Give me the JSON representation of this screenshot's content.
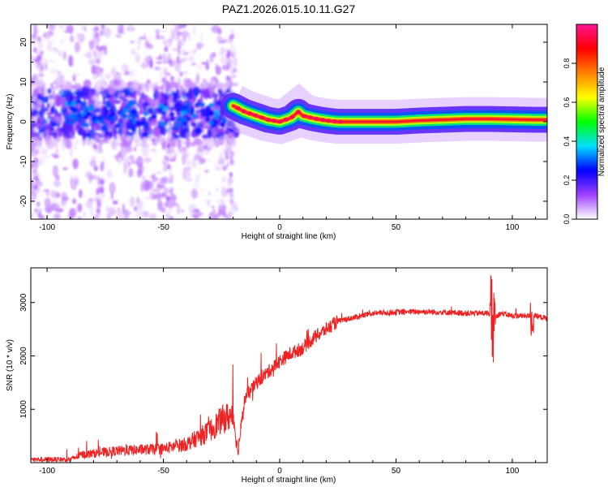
{
  "title": "PAZ1.2026.015.10.11.G27",
  "chart_data": [
    {
      "type": "heatmap",
      "id": "spectrogram",
      "xlabel": "Height of straight line (km)",
      "ylabel": "Frequency (Hz)",
      "xlim": [
        -107,
        115
      ],
      "ylim": [
        -24.5,
        24.5
      ],
      "xticks": [
        -100,
        -50,
        0,
        50,
        100
      ],
      "yticks": [
        -20,
        -10,
        0,
        10,
        20
      ],
      "ridge": {
        "x": [
          -20,
          -15,
          -10,
          -5,
          0,
          5,
          8,
          10,
          15,
          20,
          25,
          30,
          40,
          50,
          60,
          70,
          80,
          90,
          100,
          110,
          115
        ],
        "freq": [
          4,
          2.5,
          1.5,
          0.5,
          0,
          1,
          2.5,
          1.5,
          0.8,
          0.3,
          0,
          0,
          0,
          0,
          0.3,
          0.5,
          0.7,
          0.7,
          0.6,
          0.5,
          0.5
        ]
      },
      "colorbar": {
        "label": "Normalized spectral amplitude",
        "range": [
          0,
          1
        ],
        "ticks": [
          0.0,
          0.2,
          0.4,
          0.6,
          0.8
        ],
        "tick_labels": [
          "0.0",
          "0.2",
          "0.4",
          "0.6",
          "0.8"
        ],
        "colors": [
          "#ffffff",
          "#a040ff",
          "#0000ff",
          "#00e0ff",
          "#00ff00",
          "#ffff00",
          "#ff8000",
          "#ff0000",
          "#ff1493"
        ]
      }
    },
    {
      "type": "line",
      "id": "snr",
      "xlabel": "Height of straight line (km)",
      "ylabel": "SNR (10 * v/v)",
      "xlim": [
        -107,
        115
      ],
      "ylim": [
        0,
        3650
      ],
      "xticks": [
        -100,
        -50,
        0,
        50,
        100
      ],
      "yticks": [
        1000,
        2000,
        3000
      ],
      "color": "#ee2222",
      "envelope": {
        "x": [
          -107,
          -90,
          -85,
          -70,
          -50,
          -40,
          -30,
          -25,
          -20,
          -18,
          -15,
          -10,
          -5,
          0,
          5,
          10,
          15,
          20,
          25,
          30,
          35,
          40,
          50,
          60,
          70,
          80,
          90,
          92,
          95,
          100,
          110,
          115
        ],
        "y": [
          60,
          60,
          150,
          220,
          260,
          350,
          600,
          800,
          900,
          200,
          1200,
          1500,
          1700,
          1900,
          2050,
          2150,
          2350,
          2500,
          2650,
          2700,
          2750,
          2800,
          2820,
          2830,
          2820,
          2800,
          2800,
          2700,
          2800,
          2750,
          2750,
          2700
        ]
      }
    }
  ]
}
